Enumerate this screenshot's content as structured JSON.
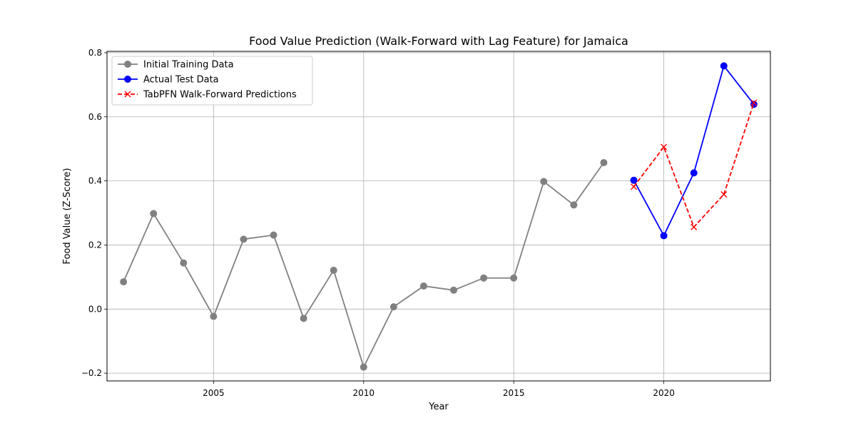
{
  "chart_data": {
    "type": "line",
    "title": "Food Value Prediction (Walk-Forward with Lag Feature) for Jamaica",
    "xlabel": "Year",
    "ylabel": "Food Value (Z-Score)",
    "xlim": [
      2001.45,
      2023.55
    ],
    "ylim": [
      -0.2242,
      0.8043
    ],
    "xticks": [
      2005,
      2010,
      2015,
      2020
    ],
    "yticks": [
      -0.2,
      0.0,
      0.2,
      0.4,
      0.6,
      0.8
    ],
    "ytick_labels": [
      "−0.2",
      "0.0",
      "0.2",
      "0.4",
      "0.6",
      "0.8"
    ],
    "grid": true,
    "legend_position": "upper left",
    "series": [
      {
        "name": "Initial Training Data",
        "color": "#808080",
        "linestyle": "solid",
        "marker": "circle",
        "x": [
          2002,
          2003,
          2004,
          2005,
          2006,
          2007,
          2008,
          2009,
          2010,
          2011,
          2012,
          2013,
          2014,
          2015,
          2016,
          2017,
          2018
        ],
        "y": [
          0.085,
          0.298,
          0.144,
          -0.023,
          0.218,
          0.231,
          -0.029,
          0.121,
          -0.181,
          0.007,
          0.072,
          0.059,
          0.097,
          0.097,
          0.398,
          0.325,
          0.457
        ]
      },
      {
        "name": "Actual Test Data",
        "color": "#0000ff",
        "linestyle": "solid",
        "marker": "circle",
        "x": [
          2019,
          2020,
          2021,
          2022,
          2023
        ],
        "y": [
          0.402,
          0.229,
          0.425,
          0.759,
          0.639
        ]
      },
      {
        "name": "TabPFN Walk-Forward Predictions",
        "color": "#ff0000",
        "linestyle": "dashed",
        "marker": "x",
        "x": [
          2019,
          2020,
          2021,
          2022,
          2023
        ],
        "y": [
          0.382,
          0.506,
          0.256,
          0.358,
          0.644
        ]
      }
    ]
  }
}
